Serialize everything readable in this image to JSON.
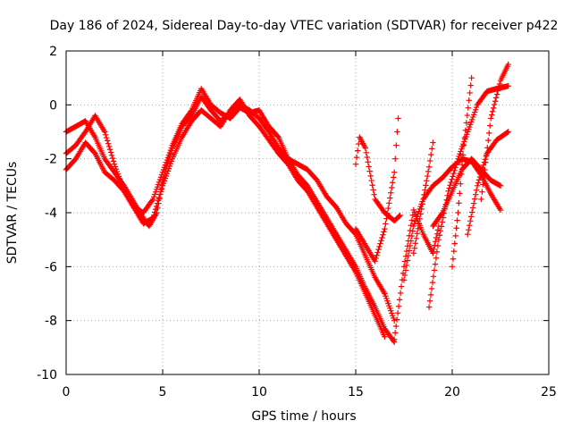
{
  "chart_data": {
    "type": "scatter",
    "title": "Day 186 of 2024, Sidereal Day-to-day VTEC variation (SDTVAR) for receiver p422",
    "xlabel": "GPS time / hours",
    "ylabel": "SDTVAR / TECUs",
    "xlim": [
      0,
      25
    ],
    "ylim": [
      -10,
      2
    ],
    "xticks": [
      0,
      5,
      10,
      15,
      20,
      25
    ],
    "yticks": [
      -10,
      -8,
      -6,
      -4,
      -2,
      0,
      2
    ],
    "grid": true,
    "marker": "plus",
    "color": "#ff0000",
    "series": [
      {
        "x": [
          0.0,
          0.5,
          1.0,
          1.5,
          2.0,
          2.5,
          3.0,
          3.5,
          4.0,
          4.3,
          4.7,
          5.0,
          5.5,
          6.0,
          6.5,
          7.0,
          7.5,
          8.0,
          8.5,
          9.0,
          9.5,
          10.0,
          10.5,
          11.0,
          11.5,
          12.0,
          12.5,
          13.0,
          13.5,
          14.0,
          14.5,
          15.0,
          15.5,
          16.0,
          16.5,
          17.0
        ],
        "y": [
          -1.0,
          -0.8,
          -0.6,
          -1.2,
          -2.0,
          -2.5,
          -3.0,
          -3.6,
          -4.2,
          -4.5,
          -4.0,
          -2.8,
          -1.6,
          -0.8,
          -0.4,
          0.3,
          -0.2,
          -0.6,
          -0.3,
          0.0,
          -0.2,
          -0.5,
          -1.0,
          -1.6,
          -2.0,
          -2.6,
          -3.0,
          -3.6,
          -4.2,
          -4.8,
          -5.4,
          -6.0,
          -6.8,
          -7.5,
          -8.3,
          -8.8
        ]
      },
      {
        "x": [
          0.0,
          0.5,
          1.0,
          1.5,
          2.0,
          2.5,
          3.0,
          3.5,
          4.0,
          4.5,
          5.0,
          5.5,
          6.0,
          6.5,
          7.0,
          7.5,
          8.0,
          8.5,
          9.0,
          9.5,
          10.0,
          10.5,
          11.0,
          11.5,
          12.0,
          12.5,
          13.0,
          13.5,
          14.0,
          14.5,
          15.0,
          15.5,
          16.0,
          16.5
        ],
        "y": [
          -2.4,
          -2.0,
          -1.4,
          -1.8,
          -2.5,
          -2.8,
          -3.2,
          -3.8,
          -4.4,
          -4.2,
          -3.0,
          -2.0,
          -1.2,
          -0.6,
          -0.2,
          -0.5,
          -0.8,
          -0.2,
          0.2,
          -0.4,
          -0.8,
          -1.3,
          -1.8,
          -2.2,
          -2.8,
          -3.2,
          -3.8,
          -4.4,
          -5.0,
          -5.6,
          -6.2,
          -7.0,
          -7.8,
          -8.6
        ]
      },
      {
        "x": [
          0.0,
          0.5,
          1.0,
          1.5,
          2.0,
          2.5,
          3.0,
          3.5,
          4.0,
          4.5,
          5.0,
          5.5,
          6.0,
          6.5,
          7.0,
          7.5,
          8.0,
          8.5,
          9.0,
          9.5,
          10.0,
          10.5,
          11.0,
          11.5,
          12.0,
          12.5,
          13.0,
          13.5,
          14.0,
          14.5,
          15.0,
          15.5,
          16.0,
          16.5,
          17.0
        ],
        "y": [
          -1.8,
          -1.5,
          -1.0,
          -0.4,
          -1.0,
          -2.2,
          -3.2,
          -3.8,
          -4.0,
          -3.5,
          -2.5,
          -1.5,
          -0.7,
          -0.2,
          0.6,
          0.0,
          -0.3,
          -0.5,
          -0.1,
          -0.3,
          -0.2,
          -0.8,
          -1.2,
          -2.0,
          -2.2,
          -2.4,
          -2.8,
          -3.4,
          -3.8,
          -4.4,
          -4.8,
          -5.6,
          -6.4,
          -7.0,
          -8.0
        ]
      },
      {
        "x": [
          15.0,
          15.2,
          15.5,
          16.0,
          16.5,
          17.0,
          17.3
        ],
        "y": [
          -2.2,
          -1.2,
          -1.6,
          -3.5,
          -4.0,
          -4.3,
          -4.1
        ]
      },
      {
        "x": [
          15.0,
          15.5,
          16.0,
          16.5,
          17.0,
          17.2
        ],
        "y": [
          -4.6,
          -5.2,
          -5.8,
          -4.6,
          -2.5,
          -0.5
        ]
      },
      {
        "x": [
          17.0,
          17.5,
          18.0,
          18.5,
          19.0,
          19.3
        ],
        "y": [
          -8.7,
          -6.0,
          -3.9,
          -4.8,
          -5.5,
          -4.5
        ]
      },
      {
        "x": [
          17.5,
          18.0,
          18.5,
          19.0,
          19.5,
          20.0,
          20.5,
          21.0,
          21.5,
          22.0,
          22.5
        ],
        "y": [
          -6.5,
          -4.5,
          -3.5,
          -3.0,
          -2.7,
          -2.3,
          -2.0,
          -2.1,
          -2.6,
          -3.3,
          -3.9
        ]
      },
      {
        "x": [
          18.0,
          18.5,
          18.8,
          19.0
        ],
        "y": [
          -5.5,
          -3.5,
          -2.3,
          -1.4
        ]
      },
      {
        "x": [
          18.8,
          19.3,
          19.8,
          20.3,
          20.8,
          21.3,
          21.8,
          22.3,
          22.9
        ],
        "y": [
          -7.5,
          -5.0,
          -3.2,
          -2.0,
          -1.0,
          0.0,
          0.5,
          0.6,
          0.7
        ]
      },
      {
        "x": [
          20.0,
          20.3,
          20.6,
          21.0
        ],
        "y": [
          -6.0,
          -4.0,
          -1.5,
          1.0
        ]
      },
      {
        "x": [
          20.8,
          21.3,
          21.8,
          22.3,
          22.9
        ],
        "y": [
          -4.8,
          -3.0,
          -1.8,
          -1.3,
          -1.0
        ]
      },
      {
        "x": [
          21.5,
          22.0,
          22.5,
          22.9
        ],
        "y": [
          -3.5,
          -0.5,
          0.9,
          1.5
        ]
      },
      {
        "x": [
          19.0,
          19.5,
          20.0,
          20.5,
          21.0,
          21.5,
          22.0,
          22.5
        ],
        "y": [
          -4.5,
          -4.0,
          -3.2,
          -2.4,
          -2.0,
          -2.4,
          -2.8,
          -3.0
        ]
      }
    ]
  }
}
